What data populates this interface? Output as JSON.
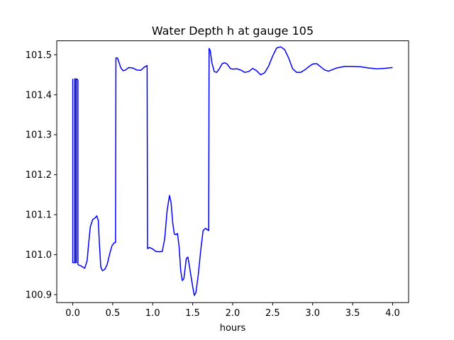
{
  "chart_data": {
    "type": "line",
    "title": "Water Depth h at gauge 105",
    "xlabel": "hours",
    "ylabel": "",
    "xlim": [
      -0.2,
      4.2
    ],
    "ylim": [
      100.88,
      101.535
    ],
    "xticks": [
      0.0,
      0.5,
      1.0,
      1.5,
      2.0,
      2.5,
      3.0,
      3.5,
      4.0
    ],
    "xtick_labels": [
      "0.0",
      "0.5",
      "1.0",
      "1.5",
      "2.0",
      "2.5",
      "3.0",
      "3.5",
      "4.0"
    ],
    "yticks": [
      100.9,
      101.0,
      101.1,
      101.2,
      101.3,
      101.4,
      101.5
    ],
    "ytick_labels": [
      "100.9",
      "101.0",
      "101.1",
      "101.2",
      "101.3",
      "101.4",
      "101.5"
    ],
    "grid": false,
    "legend": "none",
    "series": [
      {
        "color": "#0000ff",
        "points": [
          [
            0.0,
            101.44
          ],
          [
            0.0,
            100.98
          ],
          [
            0.025,
            100.98
          ],
          [
            0.025,
            101.44
          ],
          [
            0.03,
            101.44
          ],
          [
            0.03,
            100.98
          ],
          [
            0.045,
            100.98
          ],
          [
            0.045,
            101.44
          ],
          [
            0.065,
            101.437
          ],
          [
            0.065,
            100.975
          ],
          [
            0.1,
            100.972
          ],
          [
            0.15,
            100.966
          ],
          [
            0.18,
            100.985
          ],
          [
            0.2,
            101.03
          ],
          [
            0.22,
            101.07
          ],
          [
            0.25,
            101.088
          ],
          [
            0.28,
            101.092
          ],
          [
            0.3,
            101.097
          ],
          [
            0.32,
            101.085
          ],
          [
            0.33,
            101.04
          ],
          [
            0.35,
            100.97
          ],
          [
            0.37,
            100.96
          ],
          [
            0.4,
            100.963
          ],
          [
            0.43,
            100.975
          ],
          [
            0.46,
            101.0
          ],
          [
            0.49,
            101.022
          ],
          [
            0.52,
            101.03
          ],
          [
            0.535,
            101.03
          ],
          [
            0.54,
            101.492
          ],
          [
            0.56,
            101.492
          ],
          [
            0.58,
            101.48
          ],
          [
            0.6,
            101.468
          ],
          [
            0.63,
            101.46
          ],
          [
            0.66,
            101.462
          ],
          [
            0.7,
            101.468
          ],
          [
            0.75,
            101.467
          ],
          [
            0.8,
            101.462
          ],
          [
            0.85,
            101.461
          ],
          [
            0.9,
            101.47
          ],
          [
            0.93,
            101.473
          ],
          [
            0.935,
            101.015
          ],
          [
            0.96,
            101.018
          ],
          [
            1.0,
            101.014
          ],
          [
            1.04,
            101.008
          ],
          [
            1.08,
            101.007
          ],
          [
            1.12,
            101.008
          ],
          [
            1.15,
            101.04
          ],
          [
            1.18,
            101.11
          ],
          [
            1.21,
            101.148
          ],
          [
            1.23,
            101.13
          ],
          [
            1.25,
            101.08
          ],
          [
            1.27,
            101.052
          ],
          [
            1.29,
            101.05
          ],
          [
            1.31,
            101.053
          ],
          [
            1.33,
            101.02
          ],
          [
            1.35,
            100.96
          ],
          [
            1.37,
            100.935
          ],
          [
            1.39,
            100.94
          ],
          [
            1.42,
            100.99
          ],
          [
            1.44,
            100.994
          ],
          [
            1.46,
            100.97
          ],
          [
            1.5,
            100.92
          ],
          [
            1.52,
            100.898
          ],
          [
            1.54,
            100.905
          ],
          [
            1.57,
            100.95
          ],
          [
            1.6,
            101.01
          ],
          [
            1.63,
            101.06
          ],
          [
            1.66,
            101.066
          ],
          [
            1.7,
            101.06
          ],
          [
            1.705,
            101.516
          ],
          [
            1.72,
            101.51
          ],
          [
            1.74,
            101.48
          ],
          [
            1.77,
            101.458
          ],
          [
            1.8,
            101.456
          ],
          [
            1.83,
            101.464
          ],
          [
            1.87,
            101.478
          ],
          [
            1.9,
            101.48
          ],
          [
            1.93,
            101.477
          ],
          [
            1.97,
            101.466
          ],
          [
            2.0,
            101.464
          ],
          [
            2.05,
            101.465
          ],
          [
            2.1,
            101.462
          ],
          [
            2.15,
            101.456
          ],
          [
            2.2,
            101.458
          ],
          [
            2.25,
            101.466
          ],
          [
            2.3,
            101.46
          ],
          [
            2.35,
            101.45
          ],
          [
            2.4,
            101.455
          ],
          [
            2.45,
            101.472
          ],
          [
            2.5,
            101.497
          ],
          [
            2.55,
            101.517
          ],
          [
            2.6,
            101.52
          ],
          [
            2.65,
            101.513
          ],
          [
            2.7,
            101.492
          ],
          [
            2.75,
            101.465
          ],
          [
            2.8,
            101.456
          ],
          [
            2.85,
            101.456
          ],
          [
            2.9,
            101.462
          ],
          [
            2.95,
            101.47
          ],
          [
            3.0,
            101.477
          ],
          [
            3.05,
            101.478
          ],
          [
            3.1,
            101.47
          ],
          [
            3.15,
            101.462
          ],
          [
            3.2,
            101.459
          ],
          [
            3.25,
            101.463
          ],
          [
            3.3,
            101.467
          ],
          [
            3.4,
            101.471
          ],
          [
            3.5,
            101.471
          ],
          [
            3.6,
            101.47
          ],
          [
            3.7,
            101.467
          ],
          [
            3.8,
            101.465
          ],
          [
            3.9,
            101.466
          ],
          [
            4.0,
            101.468
          ]
        ]
      }
    ]
  }
}
